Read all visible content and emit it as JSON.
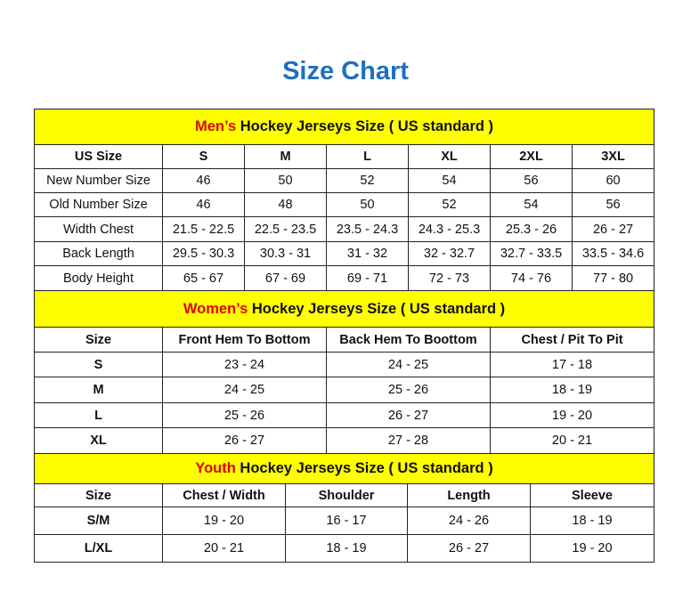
{
  "title": "Size Chart",
  "colors": {
    "title": "#1f6fc0",
    "header_bg": "#ffff00",
    "accent": "#e00000"
  },
  "sections": [
    {
      "accent": "Men’s",
      "heading": " Hockey Jerseys Size ( US standard )",
      "columns": [
        "US Size",
        "S",
        "M",
        "L",
        "XL",
        "2XL",
        "3XL"
      ],
      "rows": [
        [
          "New Number Size",
          "46",
          "50",
          "52",
          "54",
          "56",
          "60"
        ],
        [
          "Old Number Size",
          "46",
          "48",
          "50",
          "52",
          "54",
          "56"
        ],
        [
          "Width Chest",
          "21.5 - 22.5",
          "22.5 - 23.5",
          "23.5 - 24.3",
          "24.3 - 25.3",
          "25.3 - 26",
          "26 - 27"
        ],
        [
          "Back Length",
          "29.5 - 30.3",
          "30.3 - 31",
          "31 - 32",
          "32 - 32.7",
          "32.7 - 33.5",
          "33.5 - 34.6"
        ],
        [
          "Body Height",
          "65 - 67",
          "67 - 69",
          "69 - 71",
          "72 - 73",
          "74 - 76",
          "77 - 80"
        ]
      ]
    },
    {
      "accent": "Women’s",
      "heading": " Hockey Jerseys Size ( US standard )",
      "columns": [
        "Size",
        "Front Hem To Bottom",
        "Back Hem To Boottom",
        "Chest / Pit To Pit"
      ],
      "rows": [
        [
          "S",
          "23 - 24",
          "24 - 25",
          "17 - 18"
        ],
        [
          "M",
          "24 - 25",
          "25 - 26",
          "18 - 19"
        ],
        [
          "L",
          "25 - 26",
          "26 - 27",
          "19 - 20"
        ],
        [
          "XL",
          "26 - 27",
          "27 - 28",
          "20 - 21"
        ]
      ]
    },
    {
      "accent": "Youth",
      "heading": " Hockey Jerseys Size ( US standard )",
      "columns": [
        "Size",
        "Chest / Width",
        "Shoulder",
        "Length",
        "Sleeve"
      ],
      "rows": [
        [
          "S/M",
          "19 - 20",
          "16 - 17",
          "24 - 26",
          "18 - 19"
        ],
        [
          "L/XL",
          "20 - 21",
          "18 - 19",
          "26 - 27",
          "19 - 20"
        ]
      ]
    }
  ]
}
